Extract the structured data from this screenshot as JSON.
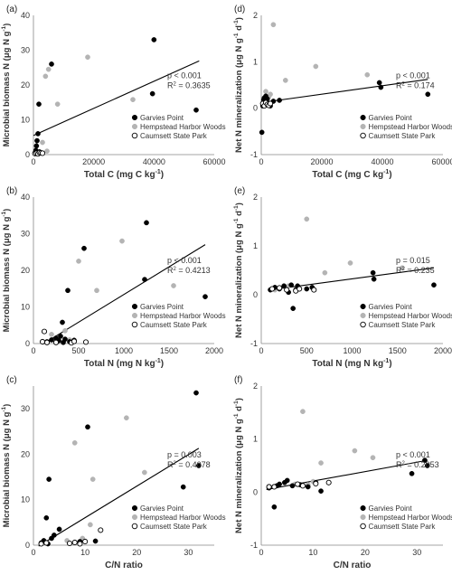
{
  "legend_labels": [
    "Garvies Point",
    "Hempstead Harbor Woods",
    "Caumsett State Park"
  ],
  "colors": {
    "garvies": "#000000",
    "hempstead": "#b4b4b4",
    "caumsett": "#ffffff",
    "trend": "#000000"
  },
  "chart_data": [
    {
      "panel": "(a)",
      "type": "scatter",
      "xlabel_main": "Total C (mg C kg",
      "xlabel_sup": "-1",
      "xlabel_end": ")",
      "ylabel_parts": [
        "Microbial biomass N (μg N g",
        "-1",
        ")"
      ],
      "xlim": [
        0,
        60000
      ],
      "ylim": [
        0,
        40
      ],
      "xticks": [
        0,
        20000,
        40000,
        60000
      ],
      "yticks": [
        0,
        10,
        20,
        30,
        40
      ],
      "stat_p": "p < 0.001",
      "stat_r2": "R",
      "stat_r2_val": " = 0.3635",
      "trend": {
        "x": [
          0,
          55000
        ],
        "y": [
          5.5,
          26.9
        ]
      },
      "series": [
        {
          "name": "Garvies Point",
          "points": [
            [
              500,
              0.5
            ],
            [
              800,
              1.2
            ],
            [
              1000,
              2.5
            ],
            [
              1200,
              4.0
            ],
            [
              1500,
              6.0
            ],
            [
              1800,
              14.5
            ],
            [
              1000,
              0.3
            ],
            [
              6000,
              26.0
            ],
            [
              39500,
              17.5
            ],
            [
              40000,
              33.0
            ],
            [
              54000,
              12.8
            ],
            [
              2000,
              0.8
            ]
          ]
        },
        {
          "name": "Hempstead Harbor Woods",
          "points": [
            [
              4000,
              22.5
            ],
            [
              5000,
              24.5
            ],
            [
              8000,
              14.5
            ],
            [
              18000,
              28.0
            ],
            [
              33000,
              15.8
            ],
            [
              3000,
              3.5
            ],
            [
              4500,
              1.0
            ]
          ]
        },
        {
          "name": "Caumsett State Park",
          "points": [
            [
              500,
              0.3
            ],
            [
              1000,
              0.4
            ],
            [
              1500,
              0.2
            ],
            [
              2000,
              0.6
            ],
            [
              2500,
              0.5
            ],
            [
              3000,
              0.4
            ]
          ]
        }
      ]
    },
    {
      "panel": "(d)",
      "type": "scatter",
      "xlabel_main": "Total C (mg C kg",
      "xlabel_sup": "-1",
      "xlabel_end": ")",
      "ylabel_parts": [
        "Net N mineralization (μg N g",
        "-1",
        " d",
        "-1",
        ")"
      ],
      "xlim": [
        0,
        60000
      ],
      "ylim": [
        -1,
        2
      ],
      "xticks": [
        0,
        20000,
        40000,
        60000
      ],
      "yticks": [
        -1,
        0,
        1,
        2
      ],
      "stat_p": "p < 0.001",
      "stat_r2": "R",
      "stat_r2_val": " = 0.174",
      "trend": {
        "x": [
          0,
          55000
        ],
        "y": [
          0.12,
          0.62
        ]
      },
      "series": [
        {
          "name": "Garvies Point",
          "points": [
            [
              200,
              -0.52
            ],
            [
              500,
              0.05
            ],
            [
              800,
              0.18
            ],
            [
              1000,
              0.22
            ],
            [
              1200,
              0.15
            ],
            [
              1500,
              0.26
            ],
            [
              2000,
              0.2
            ],
            [
              2500,
              0.1
            ],
            [
              3000,
              0.05
            ],
            [
              4000,
              0.15
            ],
            [
              6000,
              0.17
            ],
            [
              39000,
              0.55
            ],
            [
              39500,
              0.45
            ],
            [
              55000,
              0.3
            ]
          ]
        },
        {
          "name": "Hempstead Harbor Woods",
          "points": [
            [
              4000,
              1.8
            ],
            [
              8000,
              0.6
            ],
            [
              18000,
              0.9
            ],
            [
              35000,
              0.72
            ],
            [
              1500,
              0.36
            ],
            [
              2500,
              0.25
            ],
            [
              3000,
              0.3
            ]
          ]
        },
        {
          "name": "Caumsett State Park",
          "points": [
            [
              500,
              0.1
            ],
            [
              1000,
              0.05
            ],
            [
              1500,
              0.12
            ],
            [
              2000,
              0.08
            ],
            [
              2500,
              0.06
            ],
            [
              3000,
              0.1
            ]
          ]
        }
      ]
    },
    {
      "panel": "(b)",
      "type": "scatter",
      "xlabel_main": "Total N (mg N kg",
      "xlabel_sup": "-1",
      "xlabel_end": ")",
      "ylabel_parts": [
        "Microbial biomass N (μg N g",
        "-1",
        ")"
      ],
      "xlim": [
        0,
        2000
      ],
      "ylim": [
        0,
        40
      ],
      "xticks": [
        0,
        500,
        1000,
        1500,
        2000
      ],
      "yticks": [
        0,
        10,
        20,
        30,
        40
      ],
      "stat_p": "p < 0.001",
      "stat_r2": "R",
      "stat_r2_val": " = 0.4213",
      "trend": {
        "x": [
          100,
          1900
        ],
        "y": [
          -0.2,
          27.0
        ]
      },
      "series": [
        {
          "name": "Garvies Point",
          "points": [
            [
              150,
              0.5
            ],
            [
              200,
              1.0
            ],
            [
              250,
              1.5
            ],
            [
              280,
              0.8
            ],
            [
              300,
              2.0
            ],
            [
              320,
              5.8
            ],
            [
              350,
              1.2
            ],
            [
              380,
              14.5
            ],
            [
              400,
              0.5
            ],
            [
              450,
              0.9
            ],
            [
              560,
              26.0
            ],
            [
              1230,
              17.5
            ],
            [
              1250,
              33.0
            ],
            [
              1900,
              12.8
            ],
            [
              330,
              0.3
            ]
          ]
        },
        {
          "name": "Hempstead Harbor Woods",
          "points": [
            [
              500,
              22.5
            ],
            [
              700,
              14.5
            ],
            [
              980,
              28.0
            ],
            [
              1550,
              15.8
            ],
            [
              200,
              2.5
            ],
            [
              350,
              3.5
            ],
            [
              400,
              1.0
            ]
          ]
        },
        {
          "name": "Caumsett State Park",
          "points": [
            [
              100,
              0.5
            ],
            [
              120,
              3.3
            ],
            [
              150,
              0.3
            ],
            [
              420,
              0.2
            ],
            [
              450,
              0.6
            ],
            [
              580,
              0.4
            ],
            [
              250,
              0.3
            ]
          ]
        }
      ]
    },
    {
      "panel": "(e)",
      "type": "scatter",
      "xlabel_main": "Total N (mg N kg",
      "xlabel_sup": "-1",
      "xlabel_end": ")",
      "ylabel_parts": [
        "Net N mineralization (μg N g",
        "-1",
        " d",
        "-1",
        ")"
      ],
      "xlim": [
        0,
        2000
      ],
      "ylim": [
        -1,
        2
      ],
      "xticks": [
        0,
        500,
        1000,
        1500,
        2000
      ],
      "yticks": [
        -1,
        0,
        1,
        2
      ],
      "stat_p": "p = 0.015",
      "stat_r2": "R",
      "stat_r2_val": " = 0.235",
      "trend": {
        "x": [
          100,
          1900
        ],
        "y": [
          0.1,
          0.55
        ]
      },
      "series": [
        {
          "name": "Garvies Point",
          "points": [
            [
              100,
              0.1
            ],
            [
              150,
              0.15
            ],
            [
              200,
              0.12
            ],
            [
              250,
              0.18
            ],
            [
              300,
              0.05
            ],
            [
              330,
              0.2
            ],
            [
              350,
              -0.28
            ],
            [
              380,
              0.1
            ],
            [
              400,
              0.18
            ],
            [
              500,
              0.12
            ],
            [
              560,
              0.15
            ],
            [
              1230,
              0.45
            ],
            [
              1240,
              0.32
            ],
            [
              1900,
              0.2
            ]
          ]
        },
        {
          "name": "Hempstead Harbor Woods",
          "points": [
            [
              500,
              1.55
            ],
            [
              700,
              0.45
            ],
            [
              980,
              0.65
            ],
            [
              1550,
              0.55
            ],
            [
              150,
              0.1
            ],
            [
              300,
              0.18
            ],
            [
              400,
              0.15
            ]
          ]
        },
        {
          "name": "Caumsett State Park",
          "points": [
            [
              120,
              0.12
            ],
            [
              200,
              0.14
            ],
            [
              280,
              0.1
            ],
            [
              380,
              0.08
            ],
            [
              420,
              0.12
            ],
            [
              580,
              0.1
            ]
          ]
        }
      ]
    },
    {
      "panel": "(c)",
      "type": "scatter",
      "xlabel_main": "C/N ratio",
      "xlabel_sup": "",
      "xlabel_end": "",
      "ylabel_parts": [
        "Microbial biomass N (μg N g",
        "-1",
        ")"
      ],
      "xlim": [
        0,
        35
      ],
      "ylim": [
        0,
        35
      ],
      "xticks": [
        0,
        10,
        20,
        30
      ],
      "yticks": [
        0,
        10,
        20,
        30
      ],
      "stat_p": "p = 0.003",
      "stat_r2": "R",
      "stat_r2_val": " = 0.4078",
      "trend": {
        "x": [
          1,
          32
        ],
        "y": [
          -0.2,
          21.3
        ]
      },
      "series": [
        {
          "name": "Garvies Point",
          "points": [
            [
              1.5,
              0.5
            ],
            [
              2.0,
              1.0
            ],
            [
              2.5,
              6.0
            ],
            [
              3.0,
              14.5
            ],
            [
              3.5,
              1.5
            ],
            [
              4.0,
              2.2
            ],
            [
              5.0,
              3.5
            ],
            [
              9.0,
              0.8
            ],
            [
              10.5,
              26.0
            ],
            [
              12.0,
              0.9
            ],
            [
              29.0,
              12.8
            ],
            [
              31.5,
              33.5
            ],
            [
              32.0,
              17.5
            ],
            [
              2.8,
              0.3
            ]
          ]
        },
        {
          "name": "Hempstead Harbor Woods",
          "points": [
            [
              8.0,
              22.5
            ],
            [
              11.5,
              14.5
            ],
            [
              18.0,
              28.0
            ],
            [
              21.5,
              16.0
            ],
            [
              11.0,
              4.5
            ],
            [
              9.5,
              1.5
            ],
            [
              6.5,
              1.0
            ]
          ]
        },
        {
          "name": "Caumsett State Park",
          "points": [
            [
              1.5,
              0.3
            ],
            [
              2.5,
              0.5
            ],
            [
              7.0,
              0.4
            ],
            [
              8.0,
              0.6
            ],
            [
              9.0,
              0.3
            ],
            [
              10.0,
              0.8
            ],
            [
              13.0,
              3.3
            ]
          ]
        }
      ]
    },
    {
      "panel": "(f)",
      "type": "scatter",
      "xlabel_main": "C/N ratio",
      "xlabel_sup": "",
      "xlabel_end": "",
      "ylabel_parts": [
        "Net N mineralization (μg N g",
        "-1",
        " d",
        "-1",
        ")"
      ],
      "xlim": [
        0,
        35
      ],
      "ylim": [
        -1,
        2
      ],
      "xticks": [
        0,
        10,
        20,
        30
      ],
      "yticks": [
        -1,
        0,
        1,
        2
      ],
      "stat_p": "p < 0.001",
      "stat_r2": "R",
      "stat_r2_val": " = 0.2053",
      "trend": {
        "x": [
          1,
          32
        ],
        "y": [
          0.05,
          0.6
        ]
      },
      "series": [
        {
          "name": "Garvies Point",
          "points": [
            [
              1.5,
              0.08
            ],
            [
              2.5,
              -0.28
            ],
            [
              3.0,
              0.12
            ],
            [
              3.5,
              0.15
            ],
            [
              4.5,
              0.18
            ],
            [
              5.0,
              0.22
            ],
            [
              7.5,
              0.14
            ],
            [
              9.0,
              0.1
            ],
            [
              10.5,
              0.18
            ],
            [
              11.5,
              0.02
            ],
            [
              29.0,
              0.35
            ],
            [
              31.5,
              0.6
            ],
            [
              32.0,
              0.5
            ],
            [
              6.0,
              0.12
            ]
          ]
        },
        {
          "name": "Hempstead Harbor Woods",
          "points": [
            [
              8.0,
              1.52
            ],
            [
              11.5,
              0.55
            ],
            [
              18.0,
              0.78
            ],
            [
              21.5,
              0.65
            ],
            [
              6.5,
              0.15
            ],
            [
              9.0,
              0.14
            ],
            [
              10.0,
              0.2
            ]
          ]
        },
        {
          "name": "Caumsett State Park",
          "points": [
            [
              1.5,
              0.1
            ],
            [
              2.5,
              0.1
            ],
            [
              7.0,
              0.15
            ],
            [
              8.0,
              0.12
            ],
            [
              10.5,
              0.16
            ],
            [
              13.0,
              0.18
            ]
          ]
        }
      ]
    }
  ]
}
